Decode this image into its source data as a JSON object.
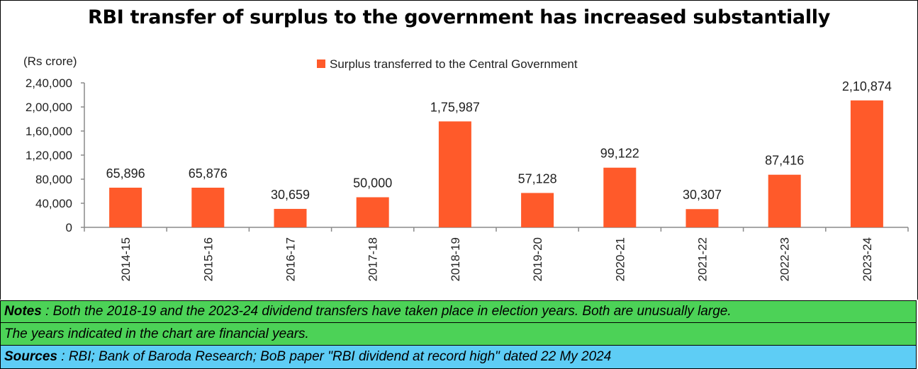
{
  "title": "RBI transfer of surplus to the government has increased substantially",
  "notes": {
    "label": "Notes",
    "text": " : Both the 2018-19 and the 2023-24 dividend transfers have taken place in election years. Both are unusually large.",
    "line2": "The years indicated in the chart are financial years."
  },
  "sources": {
    "label": "Sources",
    "text": " : RBI; Bank of Baroda Research; BoB paper \"RBI dividend at record high\" dated 22 My 2024"
  },
  "colors": {
    "bar": "#ff5a2a",
    "notes_bg": "#4cd257",
    "sources_bg": "#5ecdf5"
  },
  "chart_data": {
    "type": "bar",
    "unit_label": "(Rs crore)",
    "categories": [
      "2014-15",
      "2015-16",
      "2016-17",
      "2017-18",
      "2018-19",
      "2019-20",
      "2020-21",
      "2021-22",
      "2022-23",
      "2023-24"
    ],
    "series": [
      {
        "name": "Surplus transferred to the Central Government",
        "values": [
          65896,
          65876,
          30659,
          50000,
          175987,
          57128,
          99122,
          30307,
          87416,
          210874
        ],
        "labels": [
          "65,896",
          "65,876",
          "30,659",
          "50,000",
          "1,75,987",
          "57,128",
          "99,122",
          "30,307",
          "87,416",
          "2,10,874"
        ]
      }
    ],
    "ylim": [
      0,
      240000
    ],
    "yticks": [
      0,
      40000,
      80000,
      120000,
      160000,
      200000,
      240000
    ],
    "ytick_labels": [
      "0",
      "40,000",
      "80,000",
      "1,20,000",
      "1,60,000",
      "2,00,000",
      "2,40,000"
    ],
    "legend_position": "top-center",
    "grid": false
  }
}
